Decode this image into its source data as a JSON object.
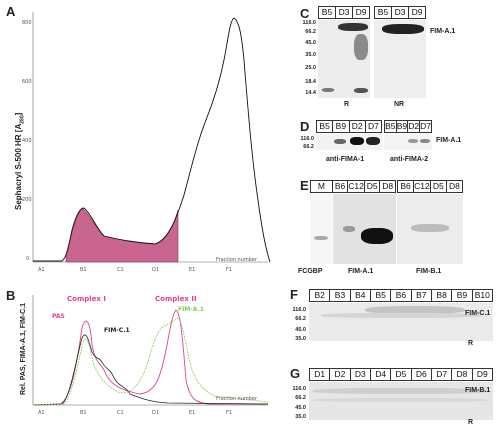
{
  "panels": {
    "A": {
      "letter": "A",
      "ylabel": "Sephacryl S-500 HR [A",
      "ylabel_sub": "280",
      "ylabel_end": "]",
      "yticks": [
        "800",
        "600",
        "400",
        "200",
        "0"
      ],
      "xlabel": "Fraction number",
      "xticks": [
        "A1",
        "B1",
        "C1",
        "D1",
        "E1",
        "F1"
      ]
    },
    "B": {
      "letter": "B",
      "ylabel": "Rel. PAS, FIMA-A.1, FIM-C.1",
      "xlabel": "Fraction number",
      "xticks": [
        "A1",
        "B1",
        "C1",
        "D1",
        "E1",
        "F1"
      ],
      "complex1": "Complex I",
      "complex2": "Complex II",
      "pas": "PAS",
      "fimc": "FIM-C.1",
      "fima": "FIM-A.1",
      "colors": {
        "pas": "#e0409a",
        "fimc": "#222222",
        "fima": "#7fd04a",
        "fill": "#c9658f"
      }
    },
    "C": {
      "letter": "C",
      "lanes_r": [
        "B5",
        "D3",
        "D9"
      ],
      "lanes_nr": [
        "B5",
        "D3",
        "D9"
      ],
      "mw": [
        "116.0",
        "66.2",
        "45.0",
        "35.0",
        "25.0",
        "18.4",
        "14.4"
      ],
      "label": "FIM-A.1",
      "r": "R",
      "nr": "NR"
    },
    "D": {
      "letter": "D",
      "lanes1": [
        "B5",
        "B9",
        "D2",
        "D7"
      ],
      "lanes2": [
        "B5",
        "B9",
        "D2",
        "D7"
      ],
      "mw": [
        "116.0",
        "66.2"
      ],
      "label": "FIM-A.1",
      "sub1": "anti-FIMA-1",
      "sub2": "anti-FIMA-2"
    },
    "E": {
      "letter": "E",
      "lanes1": [
        "M",
        "B6",
        "C12",
        "D5",
        "D8"
      ],
      "lanes2": [
        "B6",
        "C12",
        "D5",
        "D8"
      ],
      "sub0": "FCGBP",
      "sub1": "FIM-A.1",
      "sub2": "FIM-B.1"
    },
    "F": {
      "letter": "F",
      "lanes": [
        "B2",
        "B3",
        "B4",
        "B5",
        "B6",
        "B7",
        "B8",
        "B9",
        "B10"
      ],
      "mw": [
        "116.0",
        "66.2",
        "45.0",
        "35.0"
      ],
      "label": "FIM-C.1",
      "r": "R"
    },
    "G": {
      "letter": "G",
      "lanes": [
        "D1",
        "D2",
        "D3",
        "D4",
        "D5",
        "D6",
        "D7",
        "D8",
        "D9"
      ],
      "mw": [
        "116.0",
        "66.2",
        "45.0",
        "35.0"
      ],
      "label": "FIM-B.1",
      "r": "R"
    }
  }
}
